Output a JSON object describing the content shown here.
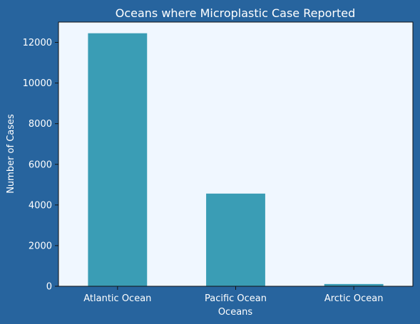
{
  "colors": {
    "figure_background": "#27649e",
    "plot_background": "#f0f7ff",
    "bar": "#3a9db5",
    "axis_line": "#111111",
    "text": "#ffffff"
  },
  "chart_data": {
    "type": "bar",
    "title": "Oceans where Microplastic Case Reported",
    "xlabel": "Oceans",
    "ylabel": "Number of Cases",
    "categories": [
      "Atlantic Ocean",
      "Pacific Ocean",
      "Arctic Ocean"
    ],
    "values": [
      12450,
      4560,
      110
    ],
    "ylim": [
      0,
      13000
    ],
    "yticks": [
      0,
      2000,
      4000,
      6000,
      8000,
      10000,
      12000
    ],
    "ytick_labels": [
      "0",
      "2000",
      "4000",
      "6000",
      "8000",
      "10000",
      "12000"
    ],
    "grid": false,
    "legend": "none"
  }
}
